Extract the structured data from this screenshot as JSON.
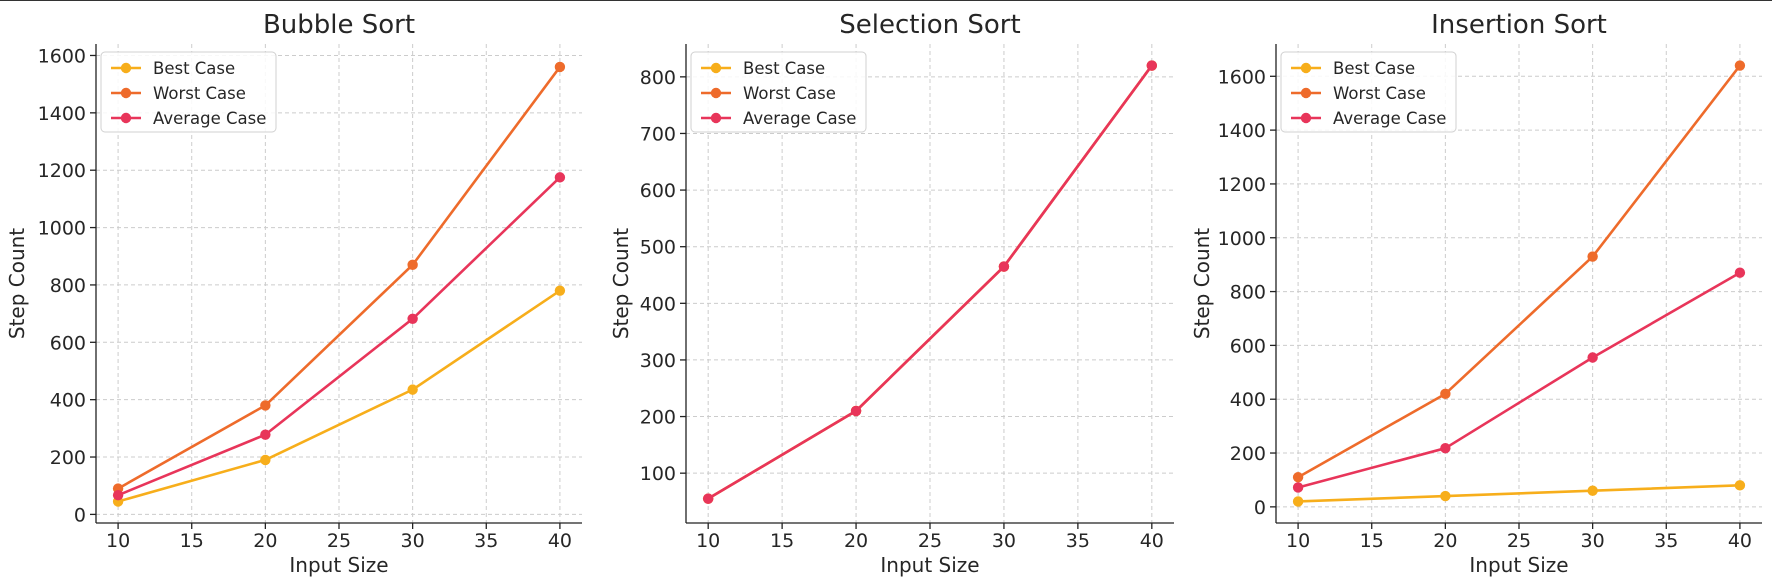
{
  "chart_data": [
    {
      "type": "line",
      "title": "Bubble Sort",
      "xlabel": "Input Size",
      "ylabel": "Step Count",
      "x": [
        10,
        20,
        30,
        40
      ],
      "xlim": [
        8.5,
        41.5
      ],
      "ylim": [
        -30,
        1640
      ],
      "xticks": [
        10,
        15,
        20,
        25,
        30,
        35,
        40
      ],
      "yticks": [
        0,
        200,
        400,
        600,
        800,
        1000,
        1200,
        1400,
        1600
      ],
      "grid": true,
      "legend_position": "top-left",
      "series": [
        {
          "name": "Best Case",
          "values": [
            45,
            190,
            435,
            780
          ],
          "color": "#F7AE1B"
        },
        {
          "name": "Worst Case",
          "values": [
            90,
            380,
            870,
            1560
          ],
          "color": "#EE6B2B"
        },
        {
          "name": "Average Case",
          "values": [
            67,
            278,
            682,
            1175
          ],
          "color": "#E8355A"
        }
      ]
    },
    {
      "type": "line",
      "title": "Selection Sort",
      "xlabel": "Input Size",
      "ylabel": "Step Count",
      "x": [
        10,
        20,
        30,
        40
      ],
      "xlim": [
        8.5,
        41.5
      ],
      "ylim": [
        12,
        858
      ],
      "xticks": [
        10,
        15,
        20,
        25,
        30,
        35,
        40
      ],
      "yticks": [
        100,
        200,
        300,
        400,
        500,
        600,
        700,
        800
      ],
      "grid": true,
      "legend_position": "top-left",
      "series": [
        {
          "name": "Best Case",
          "values": [
            55,
            210,
            465,
            820
          ],
          "color": "#F7AE1B"
        },
        {
          "name": "Worst Case",
          "values": [
            55,
            210,
            465,
            820
          ],
          "color": "#EE6B2B"
        },
        {
          "name": "Average Case",
          "values": [
            55,
            210,
            465,
            820
          ],
          "color": "#E8355A"
        }
      ]
    },
    {
      "type": "line",
      "title": "Insertion Sort",
      "xlabel": "Input Size",
      "ylabel": "Step Count",
      "x": [
        10,
        20,
        30,
        40
      ],
      "xlim": [
        8.5,
        41.5
      ],
      "ylim": [
        -60,
        1720
      ],
      "xticks": [
        10,
        15,
        20,
        25,
        30,
        35,
        40
      ],
      "yticks": [
        0,
        200,
        400,
        600,
        800,
        1000,
        1200,
        1400,
        1600
      ],
      "grid": true,
      "legend_position": "top-left",
      "series": [
        {
          "name": "Best Case",
          "values": [
            20,
            40,
            60,
            80
          ],
          "color": "#F7AE1B"
        },
        {
          "name": "Worst Case",
          "values": [
            110,
            420,
            930,
            1640
          ],
          "color": "#EE6B2B"
        },
        {
          "name": "Average Case",
          "values": [
            72,
            218,
            555,
            870
          ],
          "color": "#E8355A"
        }
      ]
    }
  ]
}
